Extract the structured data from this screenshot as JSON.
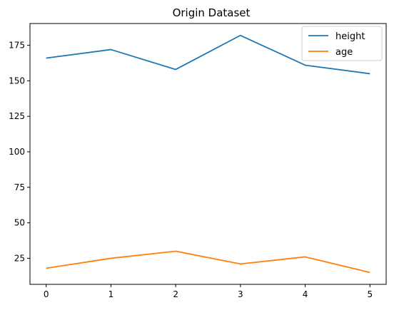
{
  "chart_data": {
    "type": "line",
    "title": "Origin Dataset",
    "xlabel": "",
    "ylabel": "",
    "x": [
      0,
      1,
      2,
      3,
      4,
      5
    ],
    "series": [
      {
        "name": "height",
        "values": [
          166,
          172,
          158,
          182,
          161,
          155
        ],
        "color": "#1f77b4"
      },
      {
        "name": "age",
        "values": [
          18,
          25,
          30,
          21,
          26,
          15
        ],
        "color": "#ff7f0e"
      }
    ],
    "xlim": [
      -0.25,
      5.25
    ],
    "ylim": [
      6.65,
      190.35
    ],
    "xticks": [
      "0",
      "1",
      "2",
      "3",
      "4",
      "5"
    ],
    "yticks": [
      "25",
      "50",
      "75",
      "100",
      "125",
      "150",
      "175"
    ],
    "grid": false,
    "legend": "top-right"
  }
}
